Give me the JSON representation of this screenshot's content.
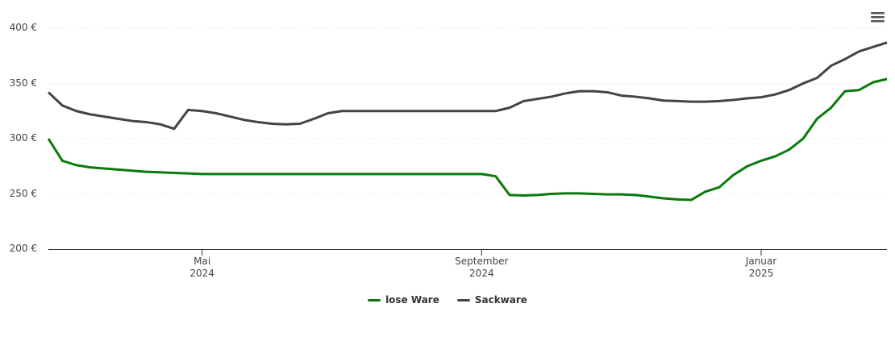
{
  "chart_data": {
    "type": "line",
    "categories": [
      null,
      null,
      null,
      null,
      null,
      null,
      null,
      null,
      null,
      null,
      null,
      "Mai\n2024",
      null,
      null,
      null,
      null,
      null,
      null,
      null,
      null,
      null,
      null,
      null,
      null,
      null,
      null,
      null,
      null,
      null,
      null,
      null,
      "September\n2024",
      null,
      null,
      null,
      null,
      null,
      null,
      null,
      null,
      null,
      null,
      null,
      null,
      null,
      null,
      null,
      null,
      null,
      null,
      null,
      "Januar\n2025",
      null,
      null,
      null,
      null,
      null,
      null,
      null,
      null,
      null
    ],
    "series": [
      {
        "name": "lose Ware",
        "color": "#0a7a0a",
        "values": [
          300,
          280,
          276,
          274,
          273,
          272,
          271,
          270,
          269.5,
          269,
          268.5,
          268,
          268,
          268,
          268,
          268,
          268,
          268,
          268,
          268,
          268,
          268,
          268,
          268,
          268,
          268,
          268,
          268,
          268,
          268,
          268,
          268,
          266,
          249,
          248.5,
          249,
          250,
          250.5,
          250.5,
          250,
          249.5,
          249.5,
          249,
          247.5,
          246,
          245,
          244.5,
          252,
          256,
          267,
          275,
          280,
          284,
          290,
          300,
          318,
          328,
          343,
          344,
          351,
          354
        ]
      },
      {
        "name": "Sackware",
        "color": "#444444",
        "values": [
          342,
          330,
          325,
          322,
          320,
          318,
          316,
          315,
          313,
          309,
          326,
          325,
          323,
          320,
          317,
          315,
          313.5,
          313,
          313.5,
          318,
          323,
          325,
          325,
          325,
          325,
          325,
          325,
          325,
          325,
          325,
          325,
          325,
          325,
          328,
          334,
          336,
          338,
          341,
          343,
          343,
          342,
          339,
          338,
          336.5,
          334.5,
          334,
          333.5,
          333.5,
          334,
          335,
          336.5,
          337.5,
          340,
          344,
          350,
          355,
          366,
          372,
          379,
          383,
          387
        ]
      }
    ],
    "ylim": [
      200,
      400
    ],
    "yticks": [
      {
        "value": 200,
        "label": "200 €"
      },
      {
        "value": 250,
        "label": "250 €"
      },
      {
        "value": 300,
        "label": "300 €"
      },
      {
        "value": 350,
        "label": "350 €"
      },
      {
        "value": 400,
        "label": "400 €"
      }
    ],
    "grid": true,
    "legend": "bottom"
  }
}
